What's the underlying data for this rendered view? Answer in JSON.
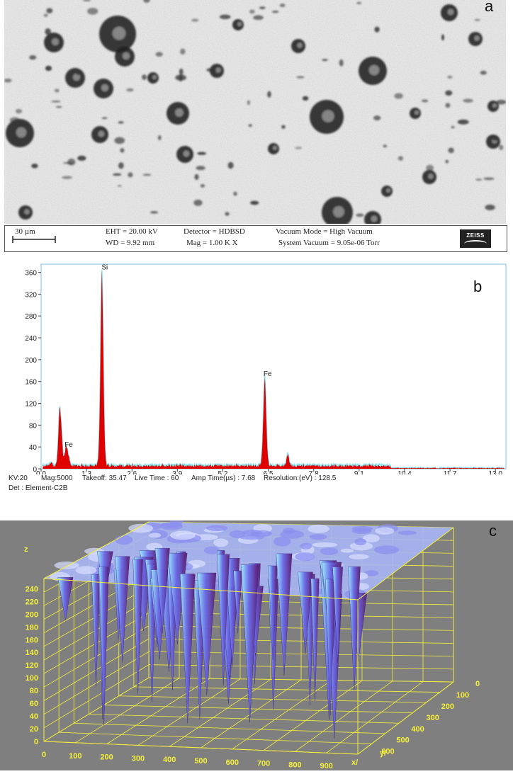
{
  "panel_labels": {
    "a": "a",
    "b": "b",
    "c": "c"
  },
  "sem_info": {
    "scale": "30 µm",
    "eht": "EHT = 20.00 kV",
    "wd": "WD = 9.92 mm",
    "detector": "Detector = HDBSD",
    "mag": "Mag =    1.00 K X",
    "vacuum_mode": "Vacuum Mode = High Vacuum",
    "system_vacuum": "System Vacuum = 9.05e-06 Torr",
    "logo": "ZEISS"
  },
  "eds_meta": {
    "kv": "KV:20",
    "mag": "Mag:5000",
    "takeoff": "Takeoff: 35.47",
    "live_time": "Live Time : 60",
    "amp_time": "Amp Time(µs) : 7.68",
    "resolution": "Resolution:(eV) : 128.5",
    "detector": "Det : Element-C2B"
  },
  "chart_data": [
    {
      "type": "area",
      "title": "",
      "xlabel": "",
      "ylabel": "",
      "xlim": [
        0,
        13.3
      ],
      "ylim": [
        0,
        375
      ],
      "x_ticks": [
        "0.0",
        "1.3",
        "2.6",
        "3.9",
        "5.2",
        "6.5",
        "7.8",
        "9.1",
        "10.4",
        "11.7",
        "13.0"
      ],
      "y_ticks": [
        "0",
        "40",
        "80",
        "120",
        "160",
        "200",
        "240",
        "280",
        "320",
        "360"
      ],
      "peaks": [
        {
          "x": 0.28,
          "y": 6
        },
        {
          "x": 0.52,
          "y": 88
        },
        {
          "x": 0.58,
          "y": 60
        },
        {
          "x": 0.71,
          "y": 35,
          "label": "Fe"
        },
        {
          "x": 0.78,
          "y": 18
        },
        {
          "x": 1.74,
          "y": 360,
          "label": "Si"
        },
        {
          "x": 6.4,
          "y": 165,
          "label": "Fe"
        },
        {
          "x": 7.06,
          "y": 22
        }
      ],
      "colors": {
        "fill": "#e00000",
        "outline": "#7fe3ef",
        "frame": "#7fbfe8"
      }
    },
    {
      "type": "surface",
      "title": "",
      "zlabel": "z",
      "xlabel": "x/",
      "ylabel": "y/",
      "z_ticks": [
        "0",
        "20",
        "40",
        "60",
        "80",
        "100",
        "120",
        "140",
        "160",
        "180",
        "200",
        "220",
        "240"
      ],
      "x_ticks": [
        "0",
        "100",
        "200",
        "300",
        "400",
        "500",
        "600",
        "700",
        "800",
        "900"
      ],
      "y_ticks": [
        "0",
        "100",
        "200",
        "300",
        "400",
        "500",
        "600"
      ],
      "colors": {
        "background": "#7f7f7f",
        "grid": "#f5f03a",
        "surface": "#6a6ae8",
        "deep": "#5a1a6e",
        "highlight": "#9ff0ff"
      }
    }
  ]
}
